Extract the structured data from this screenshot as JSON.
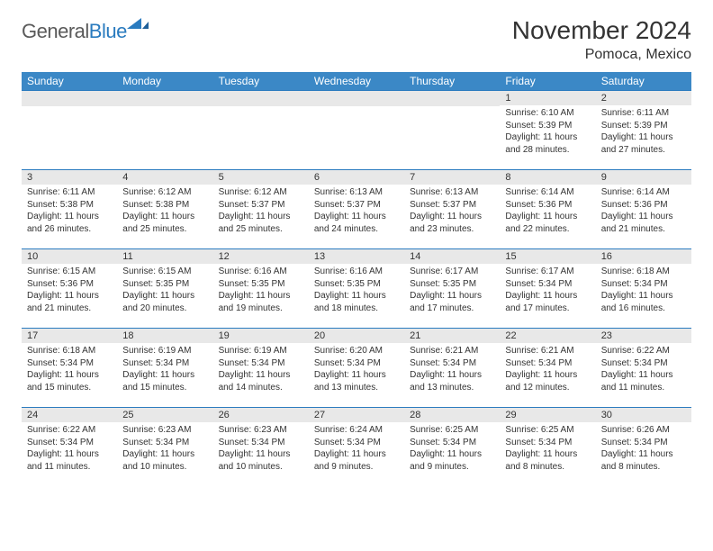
{
  "logo": {
    "word1": "General",
    "word2": "Blue"
  },
  "title": "November 2024",
  "subtitle": "Pomoca, Mexico",
  "header_color": "#3b88c6",
  "border_color": "#2a7bbf",
  "daynum_bg": "#e8e8e8",
  "text_color": "#333333",
  "columns": [
    "Sunday",
    "Monday",
    "Tuesday",
    "Wednesday",
    "Thursday",
    "Friday",
    "Saturday"
  ],
  "weeks": [
    [
      null,
      null,
      null,
      null,
      null,
      {
        "n": "1",
        "sr": "6:10 AM",
        "ss": "5:39 PM",
        "dl": "11 hours and 28 minutes."
      },
      {
        "n": "2",
        "sr": "6:11 AM",
        "ss": "5:39 PM",
        "dl": "11 hours and 27 minutes."
      }
    ],
    [
      {
        "n": "3",
        "sr": "6:11 AM",
        "ss": "5:38 PM",
        "dl": "11 hours and 26 minutes."
      },
      {
        "n": "4",
        "sr": "6:12 AM",
        "ss": "5:38 PM",
        "dl": "11 hours and 25 minutes."
      },
      {
        "n": "5",
        "sr": "6:12 AM",
        "ss": "5:37 PM",
        "dl": "11 hours and 25 minutes."
      },
      {
        "n": "6",
        "sr": "6:13 AM",
        "ss": "5:37 PM",
        "dl": "11 hours and 24 minutes."
      },
      {
        "n": "7",
        "sr": "6:13 AM",
        "ss": "5:37 PM",
        "dl": "11 hours and 23 minutes."
      },
      {
        "n": "8",
        "sr": "6:14 AM",
        "ss": "5:36 PM",
        "dl": "11 hours and 22 minutes."
      },
      {
        "n": "9",
        "sr": "6:14 AM",
        "ss": "5:36 PM",
        "dl": "11 hours and 21 minutes."
      }
    ],
    [
      {
        "n": "10",
        "sr": "6:15 AM",
        "ss": "5:36 PM",
        "dl": "11 hours and 21 minutes."
      },
      {
        "n": "11",
        "sr": "6:15 AM",
        "ss": "5:35 PM",
        "dl": "11 hours and 20 minutes."
      },
      {
        "n": "12",
        "sr": "6:16 AM",
        "ss": "5:35 PM",
        "dl": "11 hours and 19 minutes."
      },
      {
        "n": "13",
        "sr": "6:16 AM",
        "ss": "5:35 PM",
        "dl": "11 hours and 18 minutes."
      },
      {
        "n": "14",
        "sr": "6:17 AM",
        "ss": "5:35 PM",
        "dl": "11 hours and 17 minutes."
      },
      {
        "n": "15",
        "sr": "6:17 AM",
        "ss": "5:34 PM",
        "dl": "11 hours and 17 minutes."
      },
      {
        "n": "16",
        "sr": "6:18 AM",
        "ss": "5:34 PM",
        "dl": "11 hours and 16 minutes."
      }
    ],
    [
      {
        "n": "17",
        "sr": "6:18 AM",
        "ss": "5:34 PM",
        "dl": "11 hours and 15 minutes."
      },
      {
        "n": "18",
        "sr": "6:19 AM",
        "ss": "5:34 PM",
        "dl": "11 hours and 15 minutes."
      },
      {
        "n": "19",
        "sr": "6:19 AM",
        "ss": "5:34 PM",
        "dl": "11 hours and 14 minutes."
      },
      {
        "n": "20",
        "sr": "6:20 AM",
        "ss": "5:34 PM",
        "dl": "11 hours and 13 minutes."
      },
      {
        "n": "21",
        "sr": "6:21 AM",
        "ss": "5:34 PM",
        "dl": "11 hours and 13 minutes."
      },
      {
        "n": "22",
        "sr": "6:21 AM",
        "ss": "5:34 PM",
        "dl": "11 hours and 12 minutes."
      },
      {
        "n": "23",
        "sr": "6:22 AM",
        "ss": "5:34 PM",
        "dl": "11 hours and 11 minutes."
      }
    ],
    [
      {
        "n": "24",
        "sr": "6:22 AM",
        "ss": "5:34 PM",
        "dl": "11 hours and 11 minutes."
      },
      {
        "n": "25",
        "sr": "6:23 AM",
        "ss": "5:34 PM",
        "dl": "11 hours and 10 minutes."
      },
      {
        "n": "26",
        "sr": "6:23 AM",
        "ss": "5:34 PM",
        "dl": "11 hours and 10 minutes."
      },
      {
        "n": "27",
        "sr": "6:24 AM",
        "ss": "5:34 PM",
        "dl": "11 hours and 9 minutes."
      },
      {
        "n": "28",
        "sr": "6:25 AM",
        "ss": "5:34 PM",
        "dl": "11 hours and 9 minutes."
      },
      {
        "n": "29",
        "sr": "6:25 AM",
        "ss": "5:34 PM",
        "dl": "11 hours and 8 minutes."
      },
      {
        "n": "30",
        "sr": "6:26 AM",
        "ss": "5:34 PM",
        "dl": "11 hours and 8 minutes."
      }
    ]
  ],
  "labels": {
    "sunrise": "Sunrise:",
    "sunset": "Sunset:",
    "daylight": "Daylight:"
  }
}
